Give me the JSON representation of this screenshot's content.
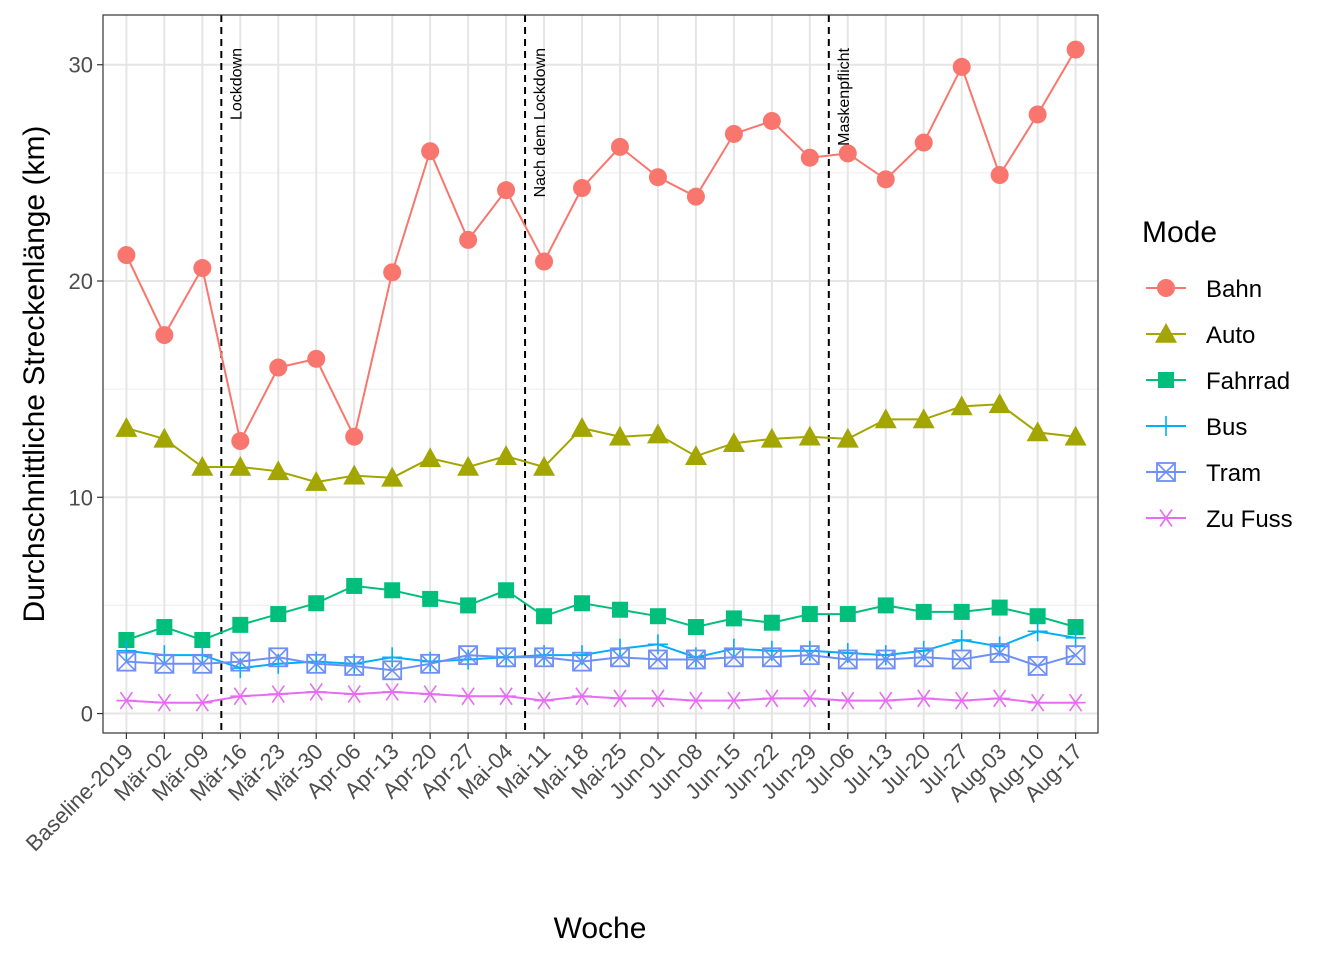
{
  "chart_data": {
    "type": "line",
    "xlabel": "Woche",
    "ylabel": "Durchschnittliche Streckenlänge (km)",
    "ylim": [
      -0.9,
      32.3
    ],
    "yticks": [
      0,
      10,
      20,
      30
    ],
    "grid": true,
    "legend_title": "Mode",
    "legend_position": "right",
    "categories": [
      "Baseline-2019",
      "Mär-02",
      "Mär-09",
      "Mär-16",
      "Mär-23",
      "Mär-30",
      "Apr-06",
      "Apr-13",
      "Apr-20",
      "Apr-27",
      "Mai-04",
      "Mai-11",
      "Mai-18",
      "Mai-25",
      "Jun-01",
      "Jun-08",
      "Jun-15",
      "Jun-22",
      "Jun-29",
      "Jul-06",
      "Jul-13",
      "Jul-20",
      "Jul-27",
      "Aug-03",
      "Aug-10",
      "Aug-17"
    ],
    "series": [
      {
        "name": "Bahn",
        "color": "#F8766D",
        "marker": "circle",
        "values": [
          21.2,
          17.5,
          20.6,
          12.6,
          16.0,
          16.4,
          12.8,
          20.4,
          26.0,
          21.9,
          24.2,
          20.9,
          24.3,
          26.2,
          24.8,
          23.9,
          26.8,
          27.4,
          25.7,
          25.9,
          24.7,
          26.4,
          29.9,
          24.9,
          27.7,
          30.7
        ]
      },
      {
        "name": "Auto",
        "color": "#A3A500",
        "marker": "triangle",
        "values": [
          13.2,
          12.7,
          11.4,
          11.4,
          11.2,
          10.7,
          11.0,
          10.9,
          11.8,
          11.4,
          11.9,
          11.4,
          13.2,
          12.8,
          12.9,
          11.9,
          12.5,
          12.7,
          12.8,
          12.7,
          13.6,
          13.6,
          14.2,
          14.3,
          13.0,
          12.8
        ]
      },
      {
        "name": "Fahrrad",
        "color": "#00BF7D",
        "marker": "square",
        "values": [
          3.4,
          4.0,
          3.4,
          4.1,
          4.6,
          5.1,
          5.9,
          5.7,
          5.3,
          5.0,
          5.7,
          4.5,
          5.1,
          4.8,
          4.5,
          4.0,
          4.4,
          4.2,
          4.6,
          4.6,
          5.0,
          4.7,
          4.7,
          4.9,
          4.5,
          4.0
        ]
      },
      {
        "name": "Bus",
        "color": "#00B0F6",
        "marker": "plus",
        "values": [
          2.9,
          2.7,
          2.7,
          2.1,
          2.3,
          2.4,
          2.3,
          2.6,
          2.4,
          2.5,
          2.6,
          2.7,
          2.7,
          3.0,
          3.2,
          2.6,
          3.0,
          2.9,
          2.9,
          2.8,
          2.7,
          2.9,
          3.4,
          3.1,
          3.8,
          3.5
        ]
      },
      {
        "name": "Tram",
        "color": "#6E8FF5",
        "marker": "squarecross",
        "values": [
          2.4,
          2.3,
          2.3,
          2.4,
          2.6,
          2.3,
          2.2,
          2.0,
          2.3,
          2.7,
          2.6,
          2.6,
          2.4,
          2.6,
          2.5,
          2.5,
          2.6,
          2.6,
          2.7,
          2.5,
          2.5,
          2.6,
          2.5,
          2.8,
          2.2,
          2.7
        ]
      },
      {
        "name": "Zu Fuss",
        "color": "#E76BF3",
        "marker": "asterisk",
        "values": [
          0.6,
          0.5,
          0.5,
          0.8,
          0.9,
          1.0,
          0.9,
          1.0,
          0.9,
          0.8,
          0.8,
          0.6,
          0.8,
          0.7,
          0.7,
          0.6,
          0.6,
          0.7,
          0.7,
          0.6,
          0.6,
          0.7,
          0.6,
          0.7,
          0.5,
          0.5
        ]
      }
    ],
    "annotations": [
      {
        "text": "Lockdown",
        "after_category": "Mär-09"
      },
      {
        "text": "Nach dem Lockdown",
        "after_category": "Mai-04"
      },
      {
        "text": "Maskenpflicht",
        "after_category": "Jun-29"
      }
    ]
  }
}
